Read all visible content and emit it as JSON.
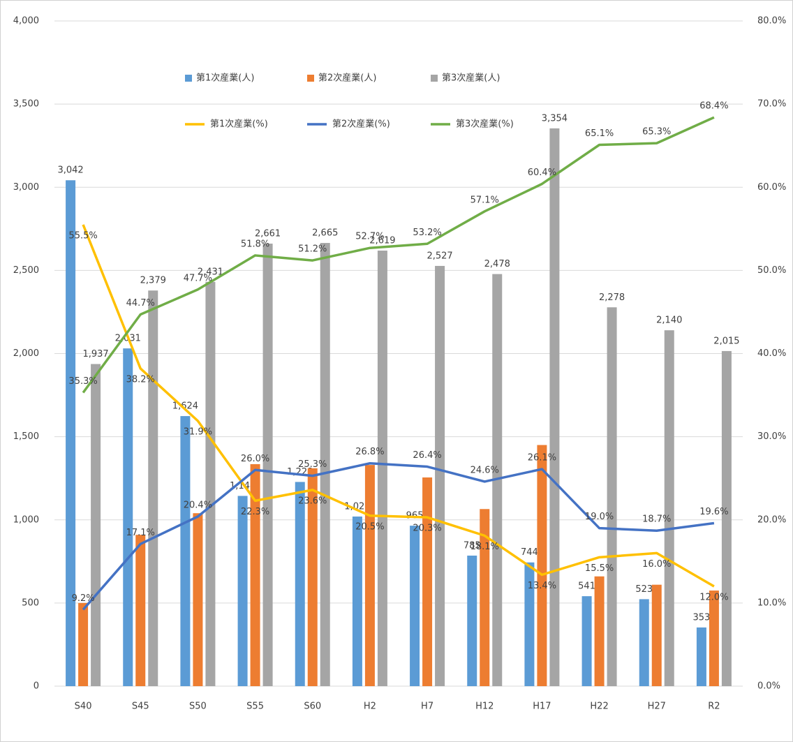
{
  "chart_data": {
    "type": "bar",
    "categories": [
      "S40",
      "S45",
      "S50",
      "S55",
      "S60",
      "H2",
      "H7",
      "H12",
      "H17",
      "H22",
      "H27",
      "R2"
    ],
    "series": [
      {
        "name": "第1次産業(人)",
        "type": "bar",
        "color": "#5b9bd5",
        "values": [
          3042,
          2031,
          1624,
          1144,
          1228,
          1020,
          965,
          785,
          744,
          541,
          523,
          353
        ],
        "value_labels": [
          "3,042",
          "2,031",
          "1,624",
          "1,144",
          "1,228",
          "1,020",
          "965",
          "785",
          "744",
          "541",
          "523",
          "353"
        ]
      },
      {
        "name": "第2次産業(人)",
        "type": "bar",
        "color": "#ed7d31",
        "values": [
          500,
          910,
          1040,
          1335,
          1310,
          1330,
          1255,
          1065,
          1450,
          660,
          610,
          575
        ]
      },
      {
        "name": "第3次産業(人)",
        "type": "bar",
        "color": "#a5a5a5",
        "values": [
          1937,
          2379,
          2431,
          2661,
          2665,
          2619,
          2527,
          2478,
          3354,
          2278,
          2140,
          2015
        ],
        "value_labels": [
          "1,937",
          "2,379",
          "2,431",
          "2,661",
          "2,665",
          "2,619",
          "2,527",
          "2,478",
          "3,354",
          "2,278",
          "2,140",
          "2,015"
        ]
      },
      {
        "name": "第1次産業(%)",
        "type": "line",
        "axis": "y2",
        "color": "#ffc000",
        "values": [
          55.5,
          38.2,
          31.9,
          22.3,
          23.6,
          20.5,
          20.3,
          18.1,
          13.4,
          15.5,
          16.0,
          12.0
        ],
        "value_labels": [
          "55.5%",
          "38.2%",
          "31.9%",
          "22.3%",
          "23.6%",
          "20.5%",
          "20.3%",
          "18.1%",
          "13.4%",
          "15.5%",
          "16.0%",
          "12.0%"
        ]
      },
      {
        "name": "第2次産業(%)",
        "type": "line",
        "axis": "y2",
        "color": "#4472c4",
        "values": [
          9.2,
          17.1,
          20.4,
          26.0,
          25.3,
          26.8,
          26.4,
          24.6,
          26.1,
          19.0,
          18.7,
          19.6
        ],
        "value_labels": [
          "9.2%",
          "17.1%",
          "20.4%",
          "26.0%",
          "25.3%",
          "26.8%",
          "26.4%",
          "24.6%",
          "26.1%",
          "19.0%",
          "18.7%",
          "19.6%"
        ]
      },
      {
        "name": "第3次産業(%)",
        "type": "line",
        "axis": "y2",
        "color": "#70ad47",
        "values": [
          35.3,
          44.7,
          47.7,
          51.8,
          51.2,
          52.7,
          53.2,
          57.1,
          60.4,
          65.1,
          65.3,
          68.4
        ],
        "value_labels": [
          "35.3%",
          "44.7%",
          "47.7%",
          "51.8%",
          "51.2%",
          "52.7%",
          "53.2%",
          "57.1%",
          "60.4%",
          "65.1%",
          "65.3%",
          "68.4%"
        ]
      }
    ],
    "ylim": [
      0,
      4000
    ],
    "yticks": [
      0,
      500,
      {
        "value": 1000,
        "label": "1,000"
      },
      {
        "value": 1500,
        "label": "1,500"
      },
      {
        "value": 2000,
        "label": "2,000"
      },
      {
        "value": 2500,
        "label": "2,500"
      },
      {
        "value": 3000,
        "label": "3,000"
      },
      {
        "value": 3500,
        "label": "3,500"
      },
      {
        "value": 4000,
        "label": "4,000"
      }
    ],
    "y2lim": [
      0,
      80
    ],
    "y2ticks": [
      {
        "value": 0,
        "label": "0.0%"
      },
      {
        "value": 10,
        "label": "10.0%"
      },
      {
        "value": 20,
        "label": "20.0%"
      },
      {
        "value": 30,
        "label": "30.0%"
      },
      {
        "value": 40,
        "label": "40.0%"
      },
      {
        "value": 50,
        "label": "50.0%"
      },
      {
        "value": 60,
        "label": "60.0%"
      },
      {
        "value": 70,
        "label": "70.0%"
      },
      {
        "value": 80,
        "label": "80.0%"
      }
    ],
    "grid": true
  }
}
